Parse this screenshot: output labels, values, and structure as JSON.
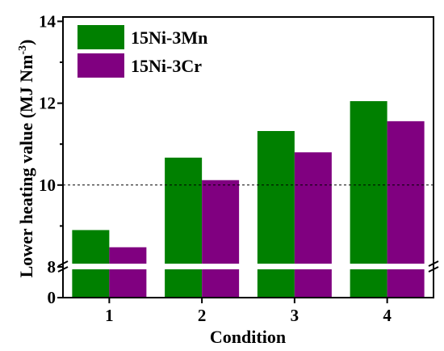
{
  "chart_data": {
    "type": "bar",
    "xlabel": "Condition",
    "ylabel": "Lower heating value (MJ Nm",
    "ylabel_sup": "-3",
    "ylabel_close": ")",
    "categories": [
      "1",
      "2",
      "3",
      "4"
    ],
    "series": [
      {
        "name": "15Ni-3Mn",
        "color": "#008000",
        "values": [
          8.9,
          10.67,
          11.32,
          12.05
        ]
      },
      {
        "name": "15Ni-3Cr",
        "color": "#800080",
        "values": [
          8.48,
          10.12,
          10.8,
          11.56
        ]
      }
    ],
    "ylim": [
      0,
      14
    ],
    "axis_break": [
      0.2,
      7.9
    ],
    "y_ticks": [
      {
        "value": 0,
        "label": "0"
      },
      {
        "value": 8,
        "label": "8"
      },
      {
        "value": 10,
        "label": "10"
      },
      {
        "value": 12,
        "label": "12"
      },
      {
        "value": 14,
        "label": "14"
      }
    ],
    "reference_line": {
      "value": 10,
      "style": "dashed"
    },
    "legend_position": "top-left",
    "grid": false
  }
}
